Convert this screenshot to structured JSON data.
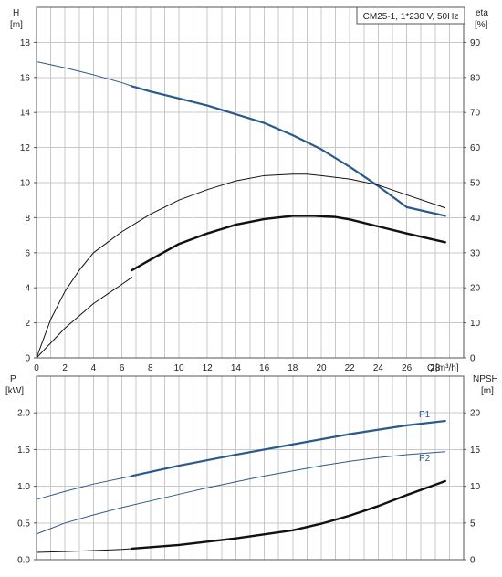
{
  "chart_data": [
    {
      "type": "line",
      "title": "CM25-1, 1*230 V, 50Hz",
      "ylabel_left": {
        "symbol": "H",
        "unit": "[m]"
      },
      "ylabel_right": {
        "symbol": "eta",
        "unit": "[%]"
      },
      "xlabel": {
        "symbol": "Q",
        "unit": "[m³/h]"
      },
      "xlim": [
        0,
        30
      ],
      "ylim": [
        0,
        20
      ],
      "ylim_right": [
        0,
        100
      ],
      "xticks": [
        "0",
        "2",
        "4",
        "6",
        "8",
        "10",
        "12",
        "14",
        "16",
        "18",
        "20",
        "22",
        "24",
        "26",
        "28"
      ],
      "yticks_left": [
        "0",
        "2",
        "4",
        "6",
        "8",
        "10",
        "12",
        "14",
        "16",
        "18"
      ],
      "yticks_right": [
        "0",
        "10",
        "20",
        "30",
        "40",
        "50",
        "60",
        "70",
        "80",
        "90"
      ],
      "grid": true,
      "series": [
        {
          "axis": "left",
          "color": "#2a5a8c",
          "width": 1.0,
          "x": [
            0,
            2,
            4,
            6,
            6.7
          ],
          "y": [
            16.9,
            16.55,
            16.15,
            15.7,
            15.5
          ]
        },
        {
          "axis": "left",
          "color": "#2a5a8c",
          "width": 2.2,
          "x": [
            6.7,
            8,
            10,
            12,
            14,
            16,
            18,
            20,
            22,
            24,
            26,
            28.7
          ],
          "y": [
            15.5,
            15.2,
            14.8,
            14.4,
            13.9,
            13.4,
            12.7,
            11.9,
            10.9,
            9.8,
            8.6,
            8.1
          ]
        },
        {
          "axis": "right",
          "color": "#111111",
          "width": 1.0,
          "x": [
            0,
            1,
            2,
            3,
            4,
            6,
            8,
            10,
            12,
            14,
            16,
            18,
            19,
            20,
            22,
            24,
            26,
            28.7
          ],
          "y": [
            0,
            11,
            19,
            25,
            30,
            36,
            41,
            45,
            48,
            50.5,
            52,
            52.4,
            52.4,
            52,
            51,
            49.3,
            46.5,
            42.8
          ]
        },
        {
          "axis": "right",
          "color": "#111111",
          "width": 1.0,
          "x": [
            0,
            2,
            4,
            6,
            6.7
          ],
          "y": [
            0,
            8.5,
            15.5,
            21,
            23
          ]
        },
        {
          "axis": "right",
          "color": "#111111",
          "width": 2.4,
          "x": [
            6.7,
            8,
            10,
            12,
            14,
            16,
            18,
            19.5,
            21,
            22,
            24,
            26,
            28.7
          ],
          "y": [
            25,
            28,
            32.5,
            35.5,
            38,
            39.6,
            40.5,
            40.5,
            40.2,
            39.5,
            37.5,
            35.5,
            33
          ]
        }
      ]
    },
    {
      "type": "line",
      "ylabel_left": {
        "symbol": "P",
        "unit": "[kW]"
      },
      "ylabel_right": {
        "symbol": "NPSH",
        "unit": "[m]"
      },
      "xlim": [
        0,
        30
      ],
      "ylim": [
        0,
        2.5
      ],
      "ylim_right": [
        0,
        25
      ],
      "yticks_left": [
        "0.0",
        "0.5",
        "1.0",
        "1.5",
        "2.0"
      ],
      "yticks_right": [
        "0",
        "5",
        "10",
        "15",
        "20"
      ],
      "grid": true,
      "series": [
        {
          "name": "P1",
          "axis": "left",
          "color": "#2a5a8c",
          "width": 1.0,
          "x": [
            0,
            2,
            4,
            6,
            6.7
          ],
          "y": [
            0.82,
            0.93,
            1.03,
            1.11,
            1.14
          ]
        },
        {
          "name": "P1",
          "axis": "left",
          "color": "#2a5a8c",
          "width": 2.2,
          "x": [
            6.7,
            10,
            14,
            18,
            22,
            26,
            28.7
          ],
          "y": [
            1.14,
            1.28,
            1.43,
            1.57,
            1.71,
            1.83,
            1.89
          ]
        },
        {
          "name": "P2",
          "axis": "left",
          "color": "#2a5a8c",
          "width": 1.0,
          "x": [
            0,
            2,
            4,
            6,
            8,
            10,
            12,
            14,
            16,
            18,
            20,
            22,
            24,
            26,
            28.7
          ],
          "y": [
            0.35,
            0.5,
            0.61,
            0.71,
            0.8,
            0.89,
            0.98,
            1.06,
            1.14,
            1.21,
            1.28,
            1.34,
            1.39,
            1.43,
            1.47
          ]
        },
        {
          "axis": "right",
          "color": "#111111",
          "width": 1.0,
          "x": [
            0,
            2,
            4,
            6,
            6.7
          ],
          "y": [
            1.0,
            1.1,
            1.25,
            1.4,
            1.5
          ]
        },
        {
          "axis": "right",
          "color": "#111111",
          "width": 2.4,
          "x": [
            6.7,
            10,
            14,
            18,
            20,
            22,
            24,
            26,
            28.7
          ],
          "y": [
            1.5,
            2.0,
            2.9,
            4.0,
            4.9,
            6.0,
            7.3,
            8.8,
            10.7
          ]
        }
      ],
      "labels": [
        "P1",
        "P2"
      ]
    }
  ]
}
